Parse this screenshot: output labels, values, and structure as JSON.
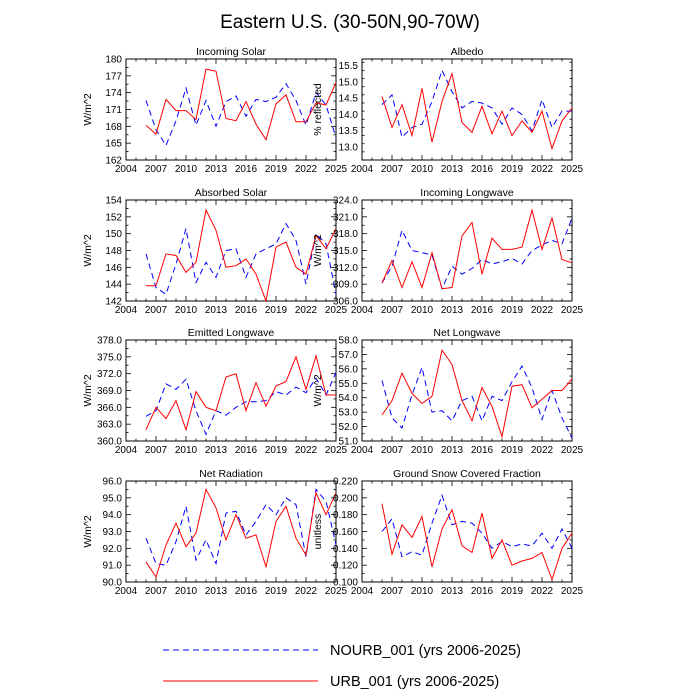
{
  "title": "Eastern U.S. (30-50N,90-70W)",
  "legend": [
    {
      "name": "NOURB_001 (yrs 2006-2025)",
      "color": "#0000ff",
      "style": "dashed"
    },
    {
      "name": "URB_001 (yrs 2006-2025)",
      "color": "#ff0000",
      "style": "solid"
    }
  ],
  "chart_data": [
    {
      "type": "line",
      "title": "Incoming Solar",
      "ylabel": "W/m^2",
      "xlabel": "",
      "xlim": [
        2004,
        2025
      ],
      "xticks": [
        "2004",
        "2007",
        "2010",
        "2013",
        "2016",
        "2019",
        "2022",
        "2025"
      ],
      "ylim": [
        162,
        180
      ],
      "yticks": [
        "162",
        "165",
        "168",
        "171",
        "174",
        "177",
        "180"
      ],
      "x": [
        2006,
        2007,
        2008,
        2009,
        2010,
        2011,
        2012,
        2013,
        2014,
        2015,
        2016,
        2017,
        2018,
        2019,
        2020,
        2021,
        2022,
        2023,
        2024,
        2025
      ],
      "series": [
        {
          "name": "NOURB_001",
          "values": [
            172.6,
            167.4,
            164.6,
            169.0,
            174.8,
            168.2,
            172.6,
            168.0,
            172.4,
            173.4,
            169.8,
            172.8,
            172.4,
            173.2,
            175.6,
            172.6,
            168.2,
            174.0,
            171.8,
            166.0
          ]
        },
        {
          "name": "URB_001",
          "values": [
            168.2,
            166.6,
            172.8,
            170.8,
            170.8,
            169.2,
            178.2,
            177.8,
            169.4,
            169.0,
            172.4,
            168.4,
            165.6,
            172.0,
            173.6,
            168.8,
            168.8,
            172.2,
            171.8,
            175.8
          ]
        }
      ]
    },
    {
      "type": "line",
      "title": "Albedo",
      "ylabel": "% reflected",
      "xlabel": "",
      "xlim": [
        2004,
        2025
      ],
      "xticks": [
        "2004",
        "2007",
        "2010",
        "2013",
        "2016",
        "2019",
        "2022",
        "2025"
      ],
      "ylim": [
        12.6,
        15.7
      ],
      "yticks": [
        "13.0",
        "13.5",
        "14.0",
        "14.5",
        "15.0",
        "15.5"
      ],
      "x": [
        2006,
        2007,
        2008,
        2009,
        2010,
        2011,
        2012,
        2013,
        2014,
        2015,
        2016,
        2017,
        2018,
        2019,
        2020,
        2021,
        2022,
        2023,
        2024,
        2025
      ],
      "series": [
        {
          "name": "NOURB_001",
          "values": [
            14.3,
            14.6,
            13.3,
            13.6,
            13.7,
            14.4,
            15.35,
            14.7,
            14.2,
            14.4,
            14.35,
            14.2,
            13.7,
            14.2,
            14.0,
            13.5,
            14.45,
            13.6,
            14.1,
            14.1
          ]
        },
        {
          "name": "URB_001",
          "values": [
            14.55,
            13.6,
            14.3,
            13.35,
            14.8,
            13.15,
            14.4,
            15.25,
            13.75,
            13.45,
            14.25,
            13.4,
            14.1,
            13.35,
            13.8,
            13.45,
            14.1,
            12.95,
            13.8,
            14.2
          ]
        }
      ]
    },
    {
      "type": "line",
      "title": "Absorbed Solar",
      "ylabel": "W/m^2",
      "xlabel": "",
      "xlim": [
        2004,
        2025
      ],
      "xticks": [
        "2004",
        "2007",
        "2010",
        "2013",
        "2016",
        "2019",
        "2022",
        "2025"
      ],
      "ylim": [
        142,
        154
      ],
      "yticks": [
        "142",
        "144",
        "146",
        "148",
        "150",
        "152",
        "154"
      ],
      "x": [
        2006,
        2007,
        2008,
        2009,
        2010,
        2011,
        2012,
        2013,
        2014,
        2015,
        2016,
        2017,
        2018,
        2019,
        2020,
        2021,
        2022,
        2023,
        2024,
        2025
      ],
      "series": [
        {
          "name": "NOURB_001",
          "values": [
            147.6,
            143.6,
            142.8,
            146.4,
            150.6,
            144.2,
            146.6,
            144.8,
            148.0,
            148.2,
            144.8,
            147.6,
            148.2,
            148.8,
            151.2,
            149.2,
            144.0,
            150.0,
            148.8,
            142.8
          ]
        },
        {
          "name": "URB_001",
          "values": [
            143.8,
            143.8,
            147.6,
            147.4,
            145.4,
            146.6,
            152.8,
            150.4,
            146.0,
            146.2,
            147.0,
            145.2,
            142.0,
            148.4,
            149.0,
            146.0,
            145.2,
            149.8,
            148.2,
            150.6
          ]
        }
      ]
    },
    {
      "type": "line",
      "title": "Incoming Longwave",
      "ylabel": "W/m^2",
      "xlabel": "",
      "xlim": [
        2004,
        2025
      ],
      "xticks": [
        "2004",
        "2007",
        "2010",
        "2013",
        "2016",
        "2019",
        "2022",
        "2025"
      ],
      "ylim": [
        306,
        324
      ],
      "yticks": [
        "306.0",
        "309.0",
        "312.0",
        "315.0",
        "318.0",
        "321.0",
        "324.0"
      ],
      "x": [
        2006,
        2007,
        2008,
        2009,
        2010,
        2011,
        2012,
        2013,
        2014,
        2015,
        2016,
        2017,
        2018,
        2019,
        2020,
        2021,
        2022,
        2023,
        2024,
        2025
      ],
      "series": [
        {
          "name": "NOURB_001",
          "values": [
            309.2,
            312.2,
            318.6,
            315.0,
            314.6,
            314.2,
            308.2,
            312.2,
            310.8,
            311.8,
            313.4,
            312.6,
            313.0,
            313.6,
            312.6,
            315.0,
            316.0,
            316.8,
            316.2,
            320.8
          ]
        },
        {
          "name": "URB_001",
          "values": [
            309.2,
            313.2,
            308.4,
            313.0,
            308.4,
            314.6,
            308.2,
            308.4,
            317.6,
            320.0,
            310.8,
            317.2,
            315.2,
            315.2,
            315.6,
            322.2,
            315.2,
            320.8,
            313.4,
            312.8
          ]
        }
      ]
    },
    {
      "type": "line",
      "title": "Emitted Longwave",
      "ylabel": "W/m^2",
      "xlabel": "",
      "xlim": [
        2004,
        2025
      ],
      "xticks": [
        "2004",
        "2007",
        "2010",
        "2013",
        "2016",
        "2019",
        "2022",
        "2025"
      ],
      "ylim": [
        360,
        378
      ],
      "yticks": [
        "360.0",
        "363.0",
        "366.0",
        "369.0",
        "372.0",
        "375.0",
        "378.0"
      ],
      "x": [
        2006,
        2007,
        2008,
        2009,
        2010,
        2011,
        2012,
        2013,
        2014,
        2015,
        2016,
        2017,
        2018,
        2019,
        2020,
        2021,
        2022,
        2023,
        2024,
        2025
      ],
      "series": [
        {
          "name": "NOURB_001",
          "values": [
            364.4,
            365.4,
            370.2,
            369.2,
            371.0,
            365.4,
            361.2,
            365.4,
            364.6,
            366.0,
            367.0,
            367.0,
            367.2,
            368.8,
            368.2,
            369.6,
            368.6,
            371.2,
            368.2,
            372.2
          ]
        },
        {
          "name": "URB_001",
          "values": [
            362.0,
            366.0,
            364.0,
            367.2,
            362.0,
            368.8,
            366.0,
            365.4,
            371.4,
            372.0,
            365.4,
            370.4,
            366.2,
            369.8,
            370.6,
            375.0,
            369.2,
            375.2,
            368.2,
            368.2
          ]
        }
      ]
    },
    {
      "type": "line",
      "title": "Net Longwave",
      "ylabel": "W/m^2",
      "xlabel": "",
      "xlim": [
        2004,
        2025
      ],
      "xticks": [
        "2004",
        "2007",
        "2010",
        "2013",
        "2016",
        "2019",
        "2022",
        "2025"
      ],
      "ylim": [
        51,
        58
      ],
      "yticks": [
        "51.0",
        "52.0",
        "53.0",
        "54.0",
        "55.0",
        "56.0",
        "57.0",
        "58.0"
      ],
      "x": [
        2006,
        2007,
        2008,
        2009,
        2010,
        2011,
        2012,
        2013,
        2014,
        2015,
        2016,
        2017,
        2018,
        2019,
        2020,
        2021,
        2022,
        2023,
        2024,
        2025
      ],
      "series": [
        {
          "name": "NOURB_001",
          "values": [
            55.2,
            52.6,
            51.9,
            54.2,
            56.1,
            53.0,
            53.1,
            52.4,
            53.8,
            54.1,
            52.4,
            54.1,
            53.8,
            55.1,
            56.2,
            54.7,
            52.5,
            54.5,
            52.6,
            51.2
          ]
        },
        {
          "name": "URB_001",
          "values": [
            52.8,
            53.8,
            55.7,
            54.3,
            53.6,
            54.1,
            57.3,
            56.3,
            53.8,
            52.4,
            54.7,
            53.4,
            51.3,
            54.8,
            54.9,
            53.3,
            53.9,
            54.5,
            54.5,
            55.3
          ]
        }
      ]
    },
    {
      "type": "line",
      "title": "Net Radiation",
      "ylabel": "W/m^2",
      "xlabel": "",
      "xlim": [
        2004,
        2025
      ],
      "xticks": [
        "2004",
        "2007",
        "2010",
        "2013",
        "2016",
        "2019",
        "2022",
        "2025"
      ],
      "ylim": [
        90,
        96
      ],
      "yticks": [
        "90.0",
        "91.0",
        "92.0",
        "93.0",
        "94.0",
        "95.0",
        "96.0"
      ],
      "x": [
        2006,
        2007,
        2008,
        2009,
        2010,
        2011,
        2012,
        2013,
        2014,
        2015,
        2016,
        2017,
        2018,
        2019,
        2020,
        2021,
        2022,
        2023,
        2024,
        2025
      ],
      "series": [
        {
          "name": "NOURB_001",
          "values": [
            92.6,
            91.1,
            91.0,
            92.4,
            94.5,
            91.3,
            92.5,
            91.1,
            94.1,
            94.2,
            92.8,
            93.6,
            94.6,
            94.0,
            95.0,
            94.6,
            91.5,
            95.5,
            94.8,
            92.2
          ]
        },
        {
          "name": "URB_001",
          "values": [
            91.2,
            90.3,
            92.2,
            93.5,
            92.1,
            92.9,
            95.5,
            94.4,
            92.5,
            94.0,
            92.6,
            92.8,
            90.9,
            93.6,
            94.5,
            92.6,
            91.6,
            95.3,
            94.0,
            95.3
          ]
        }
      ]
    },
    {
      "type": "line",
      "title": "Ground Snow Covered Fraction",
      "ylabel": "unitless",
      "xlabel": "",
      "xlim": [
        2004,
        2025
      ],
      "xticks": [
        "2004",
        "2007",
        "2010",
        "2013",
        "2016",
        "2019",
        "2022",
        "2025"
      ],
      "ylim": [
        0.1,
        0.22
      ],
      "yticks": [
        "0.100",
        "0.120",
        "0.140",
        "0.160",
        "0.180",
        "0.200",
        "0.220"
      ],
      "x": [
        2006,
        2007,
        2008,
        2009,
        2010,
        2011,
        2012,
        2013,
        2014,
        2015,
        2016,
        2017,
        2018,
        2019,
        2020,
        2021,
        2022,
        2023,
        2024,
        2025
      ],
      "series": [
        {
          "name": "NOURB_001",
          "values": [
            0.16,
            0.175,
            0.13,
            0.136,
            0.132,
            0.17,
            0.203,
            0.168,
            0.172,
            0.17,
            0.158,
            0.14,
            0.148,
            0.142,
            0.145,
            0.143,
            0.158,
            0.14,
            0.163,
            0.14
          ]
        },
        {
          "name": "URB_001",
          "values": [
            0.193,
            0.133,
            0.168,
            0.153,
            0.178,
            0.118,
            0.163,
            0.186,
            0.143,
            0.135,
            0.182,
            0.128,
            0.15,
            0.12,
            0.125,
            0.128,
            0.135,
            0.103,
            0.14,
            0.158
          ]
        }
      ]
    }
  ]
}
